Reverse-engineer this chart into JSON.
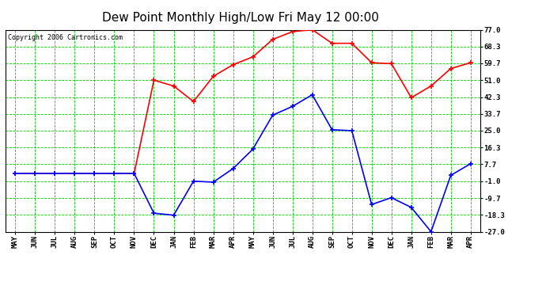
{
  "title": "Dew Point Monthly High/Low Fri May 12 00:00",
  "copyright": "Copyright 2006 Cartronics.com",
  "x_labels": [
    "MAY",
    "JUN",
    "JUL",
    "AUG",
    "SEP",
    "OCT",
    "NOV",
    "DEC",
    "JAN",
    "FEB",
    "MAR",
    "APR",
    "MAY",
    "JUN",
    "JUL",
    "AUG",
    "SEP",
    "OCT",
    "NOV",
    "DEC",
    "JAN",
    "FEB",
    "MAR",
    "APR"
  ],
  "high_values": [
    3.0,
    3.0,
    3.0,
    3.0,
    3.0,
    3.0,
    3.0,
    51.0,
    48.0,
    40.0,
    53.0,
    59.0,
    63.0,
    72.0,
    76.0,
    77.0,
    70.0,
    70.0,
    60.0,
    59.5,
    42.0,
    48.0,
    57.0,
    60.0
  ],
  "low_values": [
    3.0,
    3.0,
    3.0,
    3.0,
    3.0,
    3.0,
    3.0,
    -17.5,
    -18.5,
    -1.0,
    -1.5,
    5.5,
    15.5,
    33.0,
    37.5,
    43.5,
    25.5,
    25.0,
    -13.0,
    -9.5,
    -14.5,
    -27.0,
    2.0,
    8.0
  ],
  "high_color": "#ff0000",
  "low_color": "#0000ff",
  "grid_color": "#00cc00",
  "background_color": "#ffffff",
  "plot_bg_color": "#ffffff",
  "y_ticks": [
    77.0,
    68.3,
    59.7,
    51.0,
    42.3,
    33.7,
    25.0,
    16.3,
    7.7,
    -1.0,
    -9.7,
    -18.3,
    -27.0
  ],
  "y_min": -27.0,
  "y_max": 77.0,
  "title_fontsize": 11,
  "copyright_fontsize": 6,
  "tick_label_fontsize": 6.5,
  "marker": "+"
}
